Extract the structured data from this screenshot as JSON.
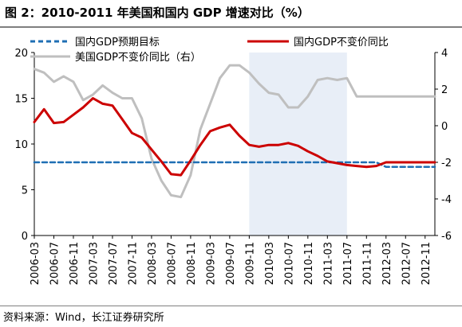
{
  "title": "图 2：2010-2011 年美国和国内 GDP 增速对比（%）",
  "source": "资料来源：Wind，长江证券研究所",
  "chart_data": {
    "type": "line",
    "x": [
      "2006-03",
      "2006-05",
      "2006-07",
      "2006-09",
      "2006-11",
      "2007-01",
      "2007-03",
      "2007-05",
      "2007-07",
      "2007-09",
      "2007-11",
      "2008-01",
      "2008-03",
      "2008-05",
      "2008-07",
      "2008-09",
      "2008-11",
      "2009-01",
      "2009-03",
      "2009-05",
      "2009-07",
      "2009-09",
      "2009-11",
      "2010-01",
      "2010-03",
      "2010-05",
      "2010-07",
      "2010-09",
      "2010-11",
      "2011-01",
      "2011-03",
      "2011-05",
      "2011-07",
      "2011-09",
      "2011-11",
      "2012-01",
      "2012-03",
      "2012-05",
      "2012-07",
      "2012-09",
      "2012-11",
      "2012-12"
    ],
    "xticks": [
      "2006-03",
      "2006-07",
      "2006-11",
      "2007-03",
      "2007-07",
      "2007-11",
      "2008-03",
      "2008-07",
      "2008-11",
      "2009-03",
      "2009-07",
      "2009-11",
      "2010-03",
      "2010-07",
      "2010-11",
      "2011-03",
      "2011-07",
      "2011-11",
      "2012-03",
      "2012-07",
      "2012-11"
    ],
    "ylim_left": [
      0,
      20
    ],
    "yticks_left": [
      0,
      5,
      10,
      15,
      20
    ],
    "ylim_right": [
      -6,
      4
    ],
    "yticks_right": [
      -6,
      -4,
      -2,
      0,
      2,
      4
    ],
    "shaded_range": [
      "2009-11",
      "2011-07"
    ],
    "legend": [
      "国内GDP预期目标",
      "国内GDP不变价同比",
      "美国GDP不变价同比（右）"
    ],
    "series": [
      {
        "name": "国内GDP预期目标",
        "axis": "left",
        "style": "dashed",
        "color": "#1f6fb4",
        "values": [
          8,
          8,
          8,
          8,
          8,
          8,
          8,
          8,
          8,
          8,
          8,
          8,
          8,
          8,
          8,
          8,
          8,
          8,
          8,
          8,
          8,
          8,
          8,
          8,
          8,
          8,
          8,
          8,
          8,
          8,
          8,
          8,
          8,
          8,
          8,
          8,
          7.5,
          7.5,
          7.5,
          7.5,
          7.5,
          7.5
        ]
      },
      {
        "name": "国内GDP不变价同比",
        "axis": "left",
        "style": "solid",
        "color": "#cc0000",
        "values": [
          12.4,
          13.8,
          12.3,
          12.4,
          13.2,
          14.0,
          15.0,
          14.4,
          14.2,
          12.7,
          11.2,
          10.7,
          9.4,
          8.1,
          6.7,
          6.6,
          8.2,
          9.9,
          11.4,
          11.8,
          12.1,
          10.9,
          9.9,
          9.7,
          9.9,
          9.9,
          10.1,
          9.8,
          9.2,
          8.7,
          8.1,
          7.9,
          7.7,
          7.6,
          7.5,
          7.6,
          8.0,
          8.0,
          8.0,
          8.0,
          8.0,
          8.0
        ]
      },
      {
        "name": "美国GDP不变价同比（右）",
        "axis": "right",
        "style": "solid",
        "color": "#bfbfbf",
        "values": [
          3.1,
          2.9,
          2.4,
          2.7,
          2.4,
          1.4,
          1.7,
          2.2,
          1.8,
          1.5,
          1.5,
          0.4,
          -1.8,
          -3.0,
          -3.8,
          -3.9,
          -2.7,
          -0.2,
          1.2,
          2.6,
          3.3,
          3.3,
          2.9,
          2.3,
          1.8,
          1.7,
          1.0,
          1.0,
          1.6,
          2.5,
          2.6,
          2.5,
          2.6,
          1.6,
          1.6,
          1.6,
          1.6,
          1.6,
          1.6,
          1.6,
          1.6,
          1.6
        ]
      }
    ]
  }
}
